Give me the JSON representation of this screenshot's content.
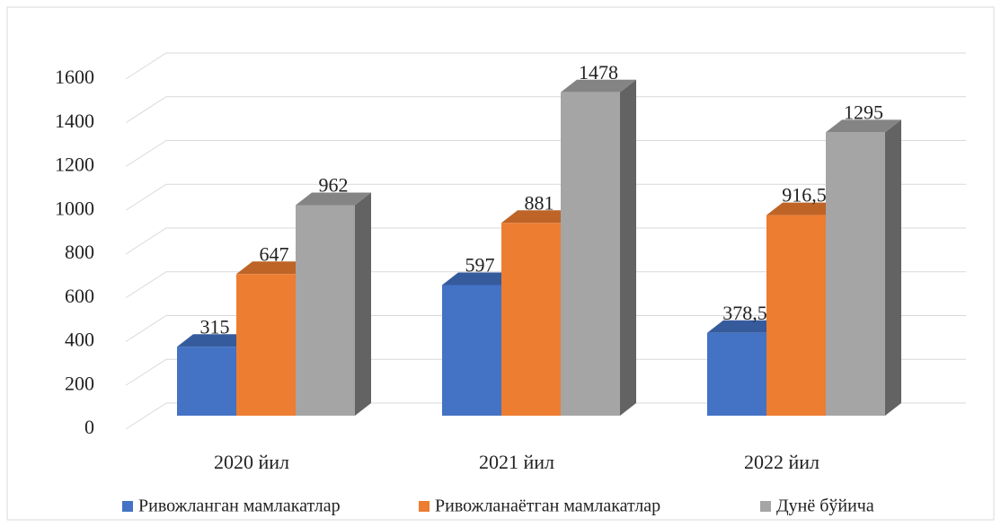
{
  "chart_data": {
    "type": "bar3d",
    "categories": [
      "2020 йил",
      "2021 йил",
      "2022 йил"
    ],
    "series": [
      {
        "name": "Ривожланган мамлакатлар",
        "color": "#4472c4",
        "values": [
          315,
          597,
          378.5
        ],
        "value_labels": [
          "315",
          "597",
          "378,5"
        ]
      },
      {
        "name": "Ривожланаётган мамлакатлар",
        "color": "#ed7d31",
        "values": [
          647,
          881,
          916.5
        ],
        "value_labels": [
          "647",
          "881",
          "916,5"
        ]
      },
      {
        "name": "Дунё бўйича",
        "color": "#a5a5a5",
        "values": [
          962,
          1478,
          1295
        ],
        "value_labels": [
          "962",
          "1478",
          "1295"
        ]
      }
    ],
    "ylim": [
      0,
      1600
    ],
    "yticks": [
      0,
      200,
      400,
      600,
      800,
      1000,
      1200,
      1400,
      1600
    ],
    "grid": true,
    "legend": "bottom"
  }
}
